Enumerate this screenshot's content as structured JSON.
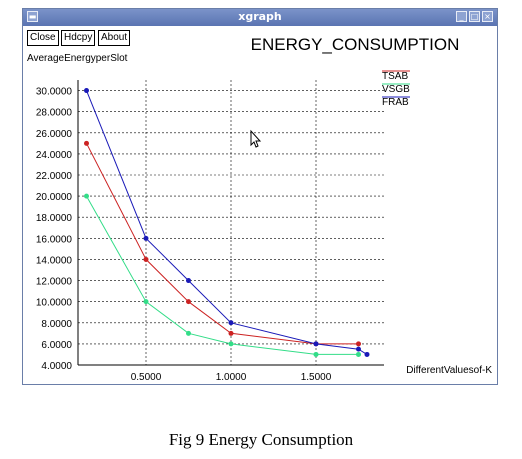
{
  "window": {
    "title": "xgraph",
    "buttons": [
      "Close",
      "Hdcpy",
      "About"
    ]
  },
  "chart_data": {
    "type": "line",
    "title": "ENERGY_CONSUMPTION",
    "ylabel": "AverageEnergyperSlot",
    "xlabel": "DifferentValuesof-K",
    "xlim": [
      0.1,
      1.9
    ],
    "ylim": [
      4.0,
      31.0
    ],
    "x_ticks": [
      0.5,
      1.0,
      1.5
    ],
    "x_tick_labels": [
      "0.5000",
      "1.0000",
      "1.5000"
    ],
    "y_ticks": [
      4,
      6,
      8,
      10,
      12,
      14,
      16,
      18,
      20,
      22,
      24,
      26,
      28,
      30
    ],
    "y_tick_labels": [
      "4.0000",
      "6.0000",
      "8.0000",
      "10.0000",
      "12.0000",
      "14.0000",
      "16.0000",
      "18.0000",
      "20.0000",
      "22.0000",
      "24.0000",
      "26.0000",
      "28.0000",
      "30.0000"
    ],
    "grid": true,
    "legend_position": "top-right",
    "series": [
      {
        "name": "TSAB",
        "color": "#cc2222",
        "x": [
          0.15,
          0.5,
          0.75,
          1.0,
          1.5,
          1.75
        ],
        "y": [
          25,
          14,
          10,
          7,
          6,
          6
        ]
      },
      {
        "name": "VSGB",
        "color": "#33dd88",
        "x": [
          0.15,
          0.5,
          0.75,
          1.0,
          1.5,
          1.75
        ],
        "y": [
          20,
          10,
          7,
          6,
          5,
          5
        ]
      },
      {
        "name": "FRAB",
        "color": "#1a1ab8",
        "x": [
          0.15,
          0.5,
          0.75,
          1.0,
          1.5,
          1.75,
          1.8
        ],
        "y": [
          30,
          16,
          12,
          8,
          6,
          5.5,
          5
        ]
      }
    ]
  },
  "caption": "Fig 9 Energy Consumption"
}
